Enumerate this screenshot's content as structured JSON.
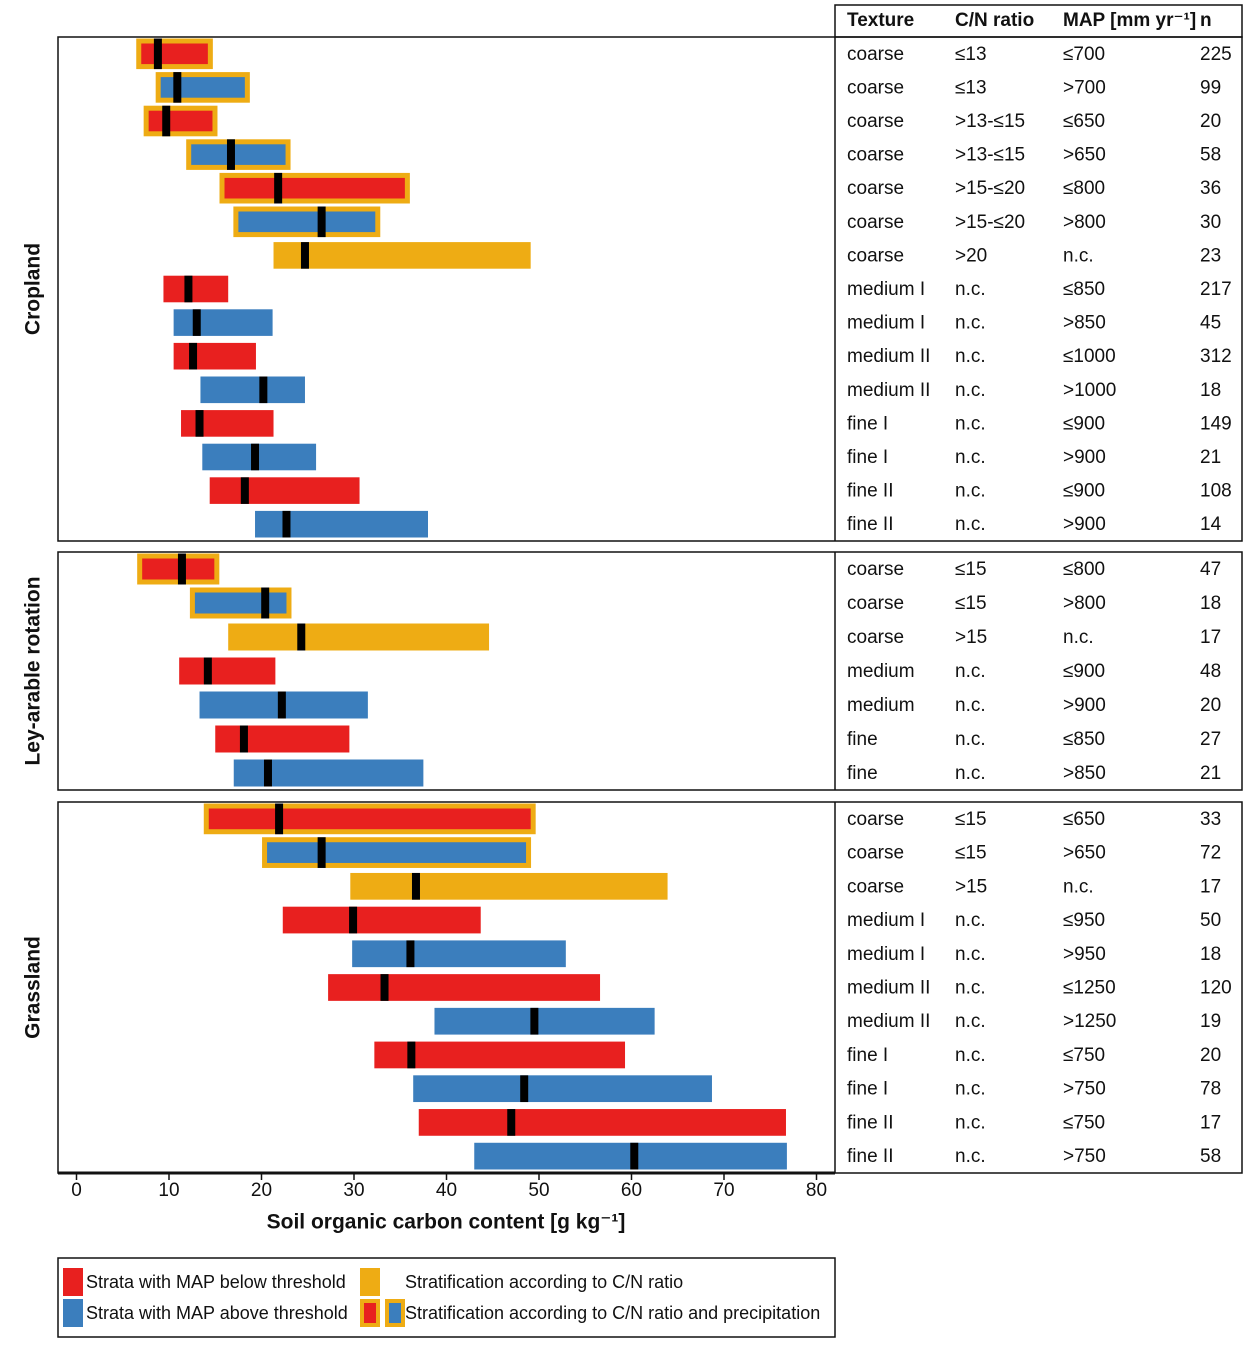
{
  "chart_data": {
    "type": "range-bar",
    "xlabel": "Soil organic carbon content [g kg⁻¹]",
    "xlim": [
      -2,
      82
    ],
    "xticks": [
      0,
      10,
      20,
      30,
      40,
      50,
      60,
      70,
      80
    ],
    "columns": [
      "Texture",
      "C/N ratio",
      "MAP [mm yr⁻¹]",
      "n"
    ],
    "median_color": "#000000",
    "panels": [
      {
        "label": "Cropland",
        "rows": [
          {
            "texture": "coarse",
            "cn": "≤13",
            "map": "≤700",
            "n": 225,
            "low": 7.0,
            "median": 8.8,
            "high": 14.2,
            "color": "#e8201f",
            "outline_color": "#eeac14"
          },
          {
            "texture": "coarse",
            "cn": "≤13",
            "map": ">700",
            "n": 99,
            "low": 9.1,
            "median": 10.9,
            "high": 18.2,
            "color": "#3b7ebd",
            "outline_color": "#eeac14"
          },
          {
            "texture": "coarse",
            "cn": ">13-≤15",
            "map": "≤650",
            "n": 20,
            "low": 7.8,
            "median": 9.7,
            "high": 14.7,
            "color": "#e8201f",
            "outline_color": "#eeac14"
          },
          {
            "texture": "coarse",
            "cn": ">13-≤15",
            "map": ">650",
            "n": 58,
            "low": 12.4,
            "median": 16.7,
            "high": 22.6,
            "color": "#3b7ebd",
            "outline_color": "#eeac14"
          },
          {
            "texture": "coarse",
            "cn": ">15-≤20",
            "map": "≤800",
            "n": 36,
            "low": 16.0,
            "median": 21.8,
            "high": 35.5,
            "color": "#e8201f",
            "outline_color": "#eeac14"
          },
          {
            "texture": "coarse",
            "cn": ">15-≤20",
            "map": ">800",
            "n": 30,
            "low": 17.5,
            "median": 26.5,
            "high": 32.3,
            "color": "#3b7ebd",
            "outline_color": "#eeac14"
          },
          {
            "texture": "coarse",
            "cn": ">20",
            "map": "n.c.",
            "n": 23,
            "low": 21.3,
            "median": 24.7,
            "high": 49.1,
            "color": "#eeac14",
            "outline_color": null
          },
          {
            "texture": "medium I",
            "cn": "n.c.",
            "map": "≤850",
            "n": 217,
            "low": 9.4,
            "median": 12.1,
            "high": 16.4,
            "color": "#e8201f",
            "outline_color": null
          },
          {
            "texture": "medium I",
            "cn": "n.c.",
            "map": ">850",
            "n": 45,
            "low": 10.5,
            "median": 13.0,
            "high": 21.2,
            "color": "#3b7ebd",
            "outline_color": null
          },
          {
            "texture": "medium II",
            "cn": "n.c.",
            "map": "≤1000",
            "n": 312,
            "low": 10.5,
            "median": 12.6,
            "high": 19.4,
            "color": "#e8201f",
            "outline_color": null
          },
          {
            "texture": "medium II",
            "cn": "n.c.",
            "map": ">1000",
            "n": 18,
            "low": 13.4,
            "median": 20.2,
            "high": 24.7,
            "color": "#3b7ebd",
            "outline_color": null
          },
          {
            "texture": "fine I",
            "cn": "n.c.",
            "map": "≤900",
            "n": 149,
            "low": 11.3,
            "median": 13.3,
            "high": 21.3,
            "color": "#e8201f",
            "outline_color": null
          },
          {
            "texture": "fine I",
            "cn": "n.c.",
            "map": ">900",
            "n": 21,
            "low": 13.6,
            "median": 19.3,
            "high": 25.9,
            "color": "#3b7ebd",
            "outline_color": null
          },
          {
            "texture": "fine II",
            "cn": "n.c.",
            "map": "≤900",
            "n": 108,
            "low": 14.4,
            "median": 18.2,
            "high": 30.6,
            "color": "#e8201f",
            "outline_color": null
          },
          {
            "texture": "fine II",
            "cn": "n.c.",
            "map": ">900",
            "n": 14,
            "low": 19.3,
            "median": 22.7,
            "high": 38.0,
            "color": "#3b7ebd",
            "outline_color": null
          }
        ]
      },
      {
        "label": "Ley-arable rotation",
        "rows": [
          {
            "texture": "coarse",
            "cn": "≤15",
            "map": "≤800",
            "n": 47,
            "low": 7.1,
            "median": 11.4,
            "high": 14.9,
            "color": "#e8201f",
            "outline_color": "#eeac14"
          },
          {
            "texture": "coarse",
            "cn": "≤15",
            "map": ">800",
            "n": 18,
            "low": 12.8,
            "median": 20.4,
            "high": 22.7,
            "color": "#3b7ebd",
            "outline_color": "#eeac14"
          },
          {
            "texture": "coarse",
            "cn": ">15",
            "map": "n.c.",
            "n": 17,
            "low": 16.4,
            "median": 24.3,
            "high": 44.6,
            "color": "#eeac14",
            "outline_color": null
          },
          {
            "texture": "medium",
            "cn": "n.c.",
            "map": "≤900",
            "n": 48,
            "low": 11.1,
            "median": 14.2,
            "high": 21.5,
            "color": "#e8201f",
            "outline_color": null
          },
          {
            "texture": "medium",
            "cn": "n.c.",
            "map": ">900",
            "n": 20,
            "low": 13.3,
            "median": 22.2,
            "high": 31.5,
            "color": "#3b7ebd",
            "outline_color": null
          },
          {
            "texture": "fine",
            "cn": "n.c.",
            "map": "≤850",
            "n": 27,
            "low": 15.0,
            "median": 18.1,
            "high": 29.5,
            "color": "#e8201f",
            "outline_color": null
          },
          {
            "texture": "fine",
            "cn": "n.c.",
            "map": ">850",
            "n": 21,
            "low": 17.0,
            "median": 20.7,
            "high": 37.5,
            "color": "#3b7ebd",
            "outline_color": null
          }
        ]
      },
      {
        "label": "Grassland",
        "rows": [
          {
            "texture": "coarse",
            "cn": "≤15",
            "map": "≤650",
            "n": 33,
            "low": 14.3,
            "median": 21.9,
            "high": 49.1,
            "color": "#e8201f",
            "outline_color": "#eeac14"
          },
          {
            "texture": "coarse",
            "cn": "≤15",
            "map": ">650",
            "n": 72,
            "low": 20.6,
            "median": 26.5,
            "high": 48.6,
            "color": "#3b7ebd",
            "outline_color": "#eeac14"
          },
          {
            "texture": "coarse",
            "cn": ">15",
            "map": "n.c.",
            "n": 17,
            "low": 29.6,
            "median": 36.7,
            "high": 63.9,
            "color": "#eeac14",
            "outline_color": null
          },
          {
            "texture": "medium I",
            "cn": "n.c.",
            "map": "≤950",
            "n": 50,
            "low": 22.3,
            "median": 29.9,
            "high": 43.7,
            "color": "#e8201f",
            "outline_color": null
          },
          {
            "texture": "medium I",
            "cn": "n.c.",
            "map": ">950",
            "n": 18,
            "low": 29.8,
            "median": 36.1,
            "high": 52.9,
            "color": "#3b7ebd",
            "outline_color": null
          },
          {
            "texture": "medium II",
            "cn": "n.c.",
            "map": "≤1250",
            "n": 120,
            "low": 27.2,
            "median": 33.3,
            "high": 56.6,
            "color": "#e8201f",
            "outline_color": null
          },
          {
            "texture": "medium II",
            "cn": "n.c.",
            "map": ">1250",
            "n": 19,
            "low": 38.7,
            "median": 49.5,
            "high": 62.5,
            "color": "#3b7ebd",
            "outline_color": null
          },
          {
            "texture": "fine I",
            "cn": "n.c.",
            "map": "≤750",
            "n": 20,
            "low": 32.2,
            "median": 36.2,
            "high": 59.3,
            "color": "#e8201f",
            "outline_color": null
          },
          {
            "texture": "fine I",
            "cn": "n.c.",
            "map": ">750",
            "n": 78,
            "low": 36.4,
            "median": 48.4,
            "high": 68.7,
            "color": "#3b7ebd",
            "outline_color": null
          },
          {
            "texture": "fine II",
            "cn": "n.c.",
            "map": "≤750",
            "n": 17,
            "low": 37.0,
            "median": 47.0,
            "high": 76.7,
            "color": "#e8201f",
            "outline_color": null
          },
          {
            "texture": "fine II",
            "cn": "n.c.",
            "map": ">750",
            "n": 58,
            "low": 43.0,
            "median": 60.3,
            "high": 76.8,
            "color": "#3b7ebd",
            "outline_color": null
          }
        ]
      }
    ],
    "legend": [
      {
        "label": "Strata with MAP below threshold",
        "colors": [
          "#e8201f"
        ],
        "outline_color": null
      },
      {
        "label": "Strata with MAP above threshold",
        "colors": [
          "#3b7ebd"
        ],
        "outline_color": null
      },
      {
        "label": "Stratification according to C/N ratio",
        "colors": [
          "#eeac14"
        ],
        "outline_color": null
      },
      {
        "label": "Stratification according to C/N ratio and precipitation",
        "colors": [
          "#e8201f",
          "#3b7ebd"
        ],
        "outline_color": "#eeac14"
      }
    ]
  }
}
